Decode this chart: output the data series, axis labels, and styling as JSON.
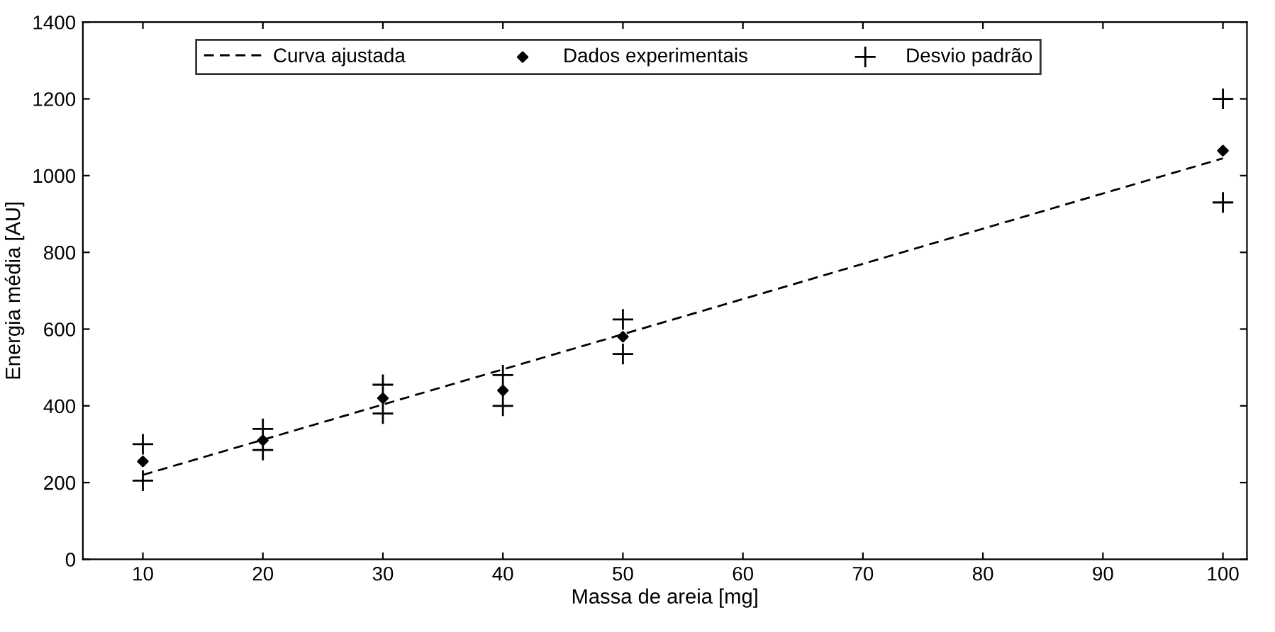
{
  "chart_data": {
    "type": "scatter",
    "xlabel": "Massa de areia [mg]",
    "ylabel": "Energia média [AU]",
    "xlim": [
      5,
      102
    ],
    "xticks": [
      10,
      20,
      30,
      40,
      50,
      60,
      70,
      80,
      90,
      100
    ],
    "ylim": [
      0,
      1400
    ],
    "yticks": [
      0,
      200,
      400,
      600,
      800,
      1000,
      1200,
      1400
    ],
    "grid": false,
    "legend": "top",
    "series": [
      {
        "name": "Curva ajustada",
        "type": "line",
        "line_style": "dashed",
        "marker": "none",
        "color": "#000000",
        "x": [
          10,
          100
        ],
        "values": [
          220,
          1045
        ]
      },
      {
        "name": "Dados experimentais",
        "marker": "diamond",
        "color": "#000000",
        "x": [
          10,
          20,
          30,
          40,
          50,
          100
        ],
        "values": [
          255,
          310,
          420,
          440,
          580,
          1065
        ]
      },
      {
        "name": "Desvio padrão",
        "marker": "cross",
        "color": "#000000",
        "x": [
          10,
          10,
          20,
          20,
          30,
          30,
          40,
          40,
          50,
          50,
          100,
          100
        ],
        "values": [
          300,
          205,
          340,
          285,
          455,
          380,
          480,
          400,
          625,
          535,
          1200,
          930
        ]
      }
    ]
  }
}
